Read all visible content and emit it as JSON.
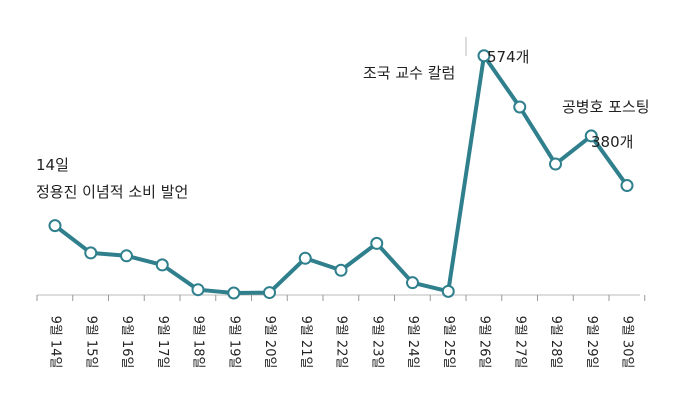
{
  "chart_data": {
    "type": "line",
    "title": "",
    "xlabel": "",
    "ylabel": "",
    "grid": false,
    "legend": "none",
    "line_color": "#2f7f8c",
    "marker_fill": "#ffffff",
    "categories": [
      "9월 14일",
      "9월 15일",
      "9월 16일",
      "9월 17일",
      "9월 18일",
      "9월 19일",
      "9월 20일",
      "9월 21일",
      "9월 22일",
      "9월 23일",
      "9월 24일",
      "9월 25일",
      "9월 26일",
      "9월 27일",
      "9월 28일",
      "9월 29일",
      "9월 30일"
    ],
    "series": [
      {
        "values": [
          163,
          97,
          90,
          68,
          8,
          0,
          1,
          84,
          55,
          120,
          25,
          4,
          574,
          450,
          312,
          380,
          260
        ]
      }
    ],
    "ylim": [
      0,
      600
    ],
    "annotations": {
      "a14_line1": "14일",
      "a14_line2": "정용진 이념적 소비 발언",
      "a26_label": "조국 교수 칼럼",
      "a26_value": "574개",
      "a29_label": "공병호 포스팅",
      "a29_value": "380개"
    }
  }
}
